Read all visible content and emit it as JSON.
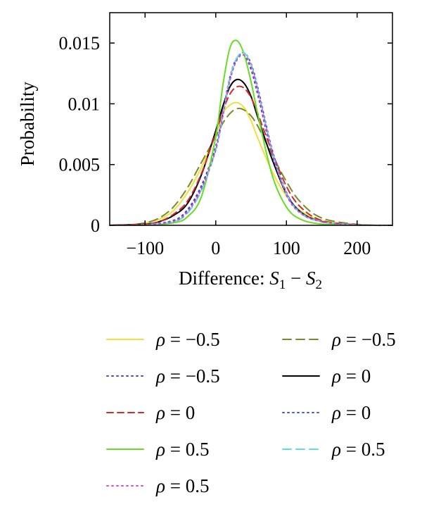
{
  "chart_data": {
    "type": "line",
    "title": "",
    "ylabel": "Probability",
    "xlabel": "Difference: ",
    "xlabel_math": {
      "a": "S",
      "a_sub": "1",
      "op": " − ",
      "b": "S",
      "b_sub": "2"
    },
    "xlim": [
      -150,
      250
    ],
    "ylim": [
      0,
      0.0175
    ],
    "xticks": [
      {
        "value": -100,
        "label": "−100"
      },
      {
        "value": 0,
        "label": "0"
      },
      {
        "value": 100,
        "label": "100"
      },
      {
        "value": 200,
        "label": "200"
      }
    ],
    "yticks": [
      {
        "value": 0,
        "label": "0"
      },
      {
        "value": 0.005,
        "label": "0.005"
      },
      {
        "value": 0.01,
        "label": "0.01"
      },
      {
        "value": 0.015,
        "label": "0.015"
      }
    ],
    "grid": false,
    "legend_position": "bottom",
    "rho_symbol": "ρ",
    "series": [
      {
        "name": "ρ = −0.5",
        "legend_value": "−0.5",
        "color": "#f2e03a",
        "dash": "solid",
        "x": [
          -150,
          -120,
          -100,
          -80,
          -60,
          -40,
          -20,
          0,
          10,
          20,
          30,
          40,
          50,
          60,
          80,
          100,
          120,
          150,
          200,
          250
        ],
        "y": [
          0,
          5e-05,
          0.0002,
          0.0005,
          0.0012,
          0.0027,
          0.0048,
          0.0075,
          0.0092,
          0.0099,
          0.0101,
          0.0097,
          0.0086,
          0.0071,
          0.0044,
          0.0024,
          0.0012,
          0.0004,
          5e-05,
          0
        ]
      },
      {
        "name": "ρ = −0.5",
        "legend_value": "−0.5",
        "color": "#7a8a2a",
        "dash": "long",
        "x": [
          -150,
          -120,
          -100,
          -80,
          -60,
          -40,
          -20,
          0,
          10,
          20,
          30,
          40,
          50,
          60,
          80,
          100,
          120,
          150,
          200,
          250
        ],
        "y": [
          0,
          5e-05,
          0.0002,
          0.0006,
          0.0015,
          0.0031,
          0.0052,
          0.0073,
          0.0084,
          0.0092,
          0.0096,
          0.0095,
          0.009,
          0.0081,
          0.0058,
          0.0036,
          0.0019,
          0.0006,
          8e-05,
          0
        ]
      },
      {
        "name": "ρ = −0.5",
        "legend_value": "−0.5",
        "color": "#5a3fc9",
        "dash": "dot",
        "x": [
          -150,
          -100,
          -60,
          -40,
          -20,
          0,
          10,
          20,
          30,
          40,
          50,
          60,
          80,
          100,
          120,
          150,
          200,
          250
        ],
        "y": [
          0,
          5e-05,
          0.0004,
          0.0013,
          0.0033,
          0.0065,
          0.0093,
          0.0122,
          0.0138,
          0.014,
          0.0128,
          0.0106,
          0.0058,
          0.0025,
          0.001,
          0.0003,
          3e-05,
          0
        ]
      },
      {
        "name": "ρ = 0",
        "legend_value": "0",
        "color": "#000000",
        "dash": "solid",
        "x": [
          -150,
          -100,
          -80,
          -60,
          -40,
          -20,
          0,
          10,
          20,
          30,
          40,
          50,
          60,
          80,
          100,
          120,
          150,
          200,
          250
        ],
        "y": [
          0,
          0.0001,
          0.0003,
          0.0008,
          0.0018,
          0.0042,
          0.0078,
          0.0098,
          0.0114,
          0.012,
          0.0117,
          0.0106,
          0.0088,
          0.0054,
          0.0026,
          0.0011,
          0.0003,
          3e-05,
          0
        ]
      },
      {
        "name": "ρ = 0",
        "legend_value": "0",
        "color": "#d62828",
        "dash": "dash",
        "x": [
          -150,
          -100,
          -80,
          -60,
          -40,
          -20,
          0,
          10,
          20,
          30,
          40,
          50,
          60,
          80,
          100,
          120,
          150,
          200,
          250
        ],
        "y": [
          0,
          0.0001,
          0.0003,
          0.0009,
          0.002,
          0.0043,
          0.0076,
          0.0094,
          0.0108,
          0.0114,
          0.0113,
          0.0105,
          0.0091,
          0.006,
          0.0032,
          0.0015,
          0.0004,
          4e-05,
          0
        ]
      },
      {
        "name": "ρ = 0",
        "legend_value": "0",
        "color": "#3b5bdb",
        "dash": "dot",
        "x": [
          -150,
          -100,
          -60,
          -40,
          -20,
          0,
          10,
          20,
          30,
          40,
          50,
          60,
          80,
          100,
          120,
          150,
          200,
          250
        ],
        "y": [
          0,
          5e-05,
          0.0004,
          0.0012,
          0.0031,
          0.0063,
          0.009,
          0.012,
          0.0137,
          0.0142,
          0.0133,
          0.0112,
          0.0062,
          0.0027,
          0.0011,
          0.0003,
          3e-05,
          0
        ]
      },
      {
        "name": "ρ = 0.5",
        "legend_value": "0.5",
        "color": "#66dd22",
        "dash": "solid",
        "x": [
          -150,
          -100,
          -60,
          -40,
          -20,
          0,
          10,
          20,
          30,
          40,
          50,
          60,
          80,
          100,
          120,
          150,
          200,
          250
        ],
        "y": [
          0,
          2e-05,
          0.0002,
          0.0007,
          0.0024,
          0.0073,
          0.0115,
          0.0146,
          0.0152,
          0.0141,
          0.0118,
          0.009,
          0.0041,
          0.0015,
          0.0005,
          0.0001,
          1e-05,
          0
        ]
      },
      {
        "name": "ρ = 0.5",
        "legend_value": "0.5",
        "color": "#5fe0d8",
        "dash": "long",
        "x": [
          -150,
          -100,
          -60,
          -40,
          -20,
          0,
          10,
          20,
          30,
          40,
          50,
          60,
          80,
          100,
          120,
          150,
          200,
          250
        ],
        "y": [
          0,
          4e-05,
          0.0003,
          0.001,
          0.0029,
          0.0062,
          0.0091,
          0.0121,
          0.0138,
          0.0142,
          0.0132,
          0.011,
          0.006,
          0.0026,
          0.001,
          0.0003,
          3e-05,
          0
        ]
      },
      {
        "name": "ρ = 0.5",
        "legend_value": "0.5",
        "color": "#d64fd0",
        "dash": "dot",
        "x": [
          -150,
          -100,
          -60,
          -40,
          -20,
          0,
          10,
          20,
          30,
          40,
          50,
          60,
          80,
          100,
          120,
          150,
          200,
          250
        ],
        "y": [
          0,
          4e-05,
          0.0003,
          0.0011,
          0.003,
          0.0062,
          0.009,
          0.0119,
          0.0136,
          0.014,
          0.0131,
          0.011,
          0.006,
          0.0026,
          0.001,
          0.0003,
          3e-05,
          0
        ]
      }
    ],
    "legend_order": [
      0,
      1,
      2,
      3,
      4,
      5,
      6,
      7,
      8
    ],
    "legend_layout": [
      {
        "series": 0,
        "col": 0,
        "row": 0
      },
      {
        "series": 1,
        "col": 1,
        "row": 0
      },
      {
        "series": 2,
        "col": 0,
        "row": 1
      },
      {
        "series": 3,
        "col": 1,
        "row": 1
      },
      {
        "series": 4,
        "col": 0,
        "row": 2
      },
      {
        "series": 5,
        "col": 1,
        "row": 2
      },
      {
        "series": 6,
        "col": 0,
        "row": 3
      },
      {
        "series": 7,
        "col": 1,
        "row": 3
      },
      {
        "series": 8,
        "col": 0,
        "row": 4
      }
    ]
  }
}
